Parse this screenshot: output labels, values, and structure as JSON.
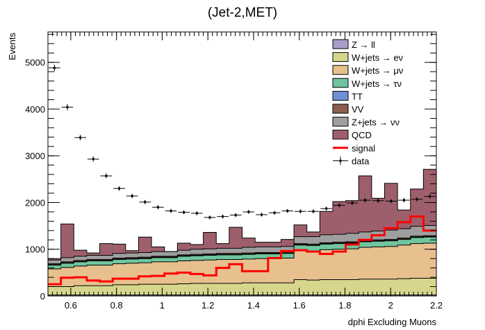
{
  "chart_data": {
    "type": "bar",
    "title": "(Jet-2,MET)",
    "xlabel": "dphi Excluding Muons",
    "ylabel": "Events",
    "xlim": [
      0.5,
      2.2
    ],
    "ylim": [
      0,
      5650
    ],
    "x_ticks": [
      0.6,
      0.8,
      1,
      1.2,
      1.4,
      1.6,
      1.8,
      2,
      2.2
    ],
    "x_tick_labels": [
      "0.6",
      "0.8",
      "1",
      "1.2",
      "1.4",
      "1.6",
      "1.8",
      "2",
      "2.2"
    ],
    "y_ticks": [
      0,
      1000,
      2000,
      3000,
      4000,
      5000
    ],
    "y_tick_labels": [
      "0",
      "1000",
      "2000",
      "3000",
      "4000",
      "5000"
    ],
    "bin_edges": [
      0.5,
      0.5567,
      0.6133,
      0.67,
      0.7267,
      0.7833,
      0.84,
      0.8967,
      0.9533,
      1.01,
      1.0667,
      1.1233,
      1.18,
      1.2367,
      1.2933,
      1.35,
      1.4067,
      1.4633,
      1.52,
      1.5767,
      1.6333,
      1.69,
      1.7467,
      1.8033,
      1.86,
      1.9167,
      1.9733,
      2.03,
      2.0867,
      2.1433,
      2.2
    ],
    "stack_order": [
      "Z → ll",
      "W+jets → eν",
      "W+jets → μν",
      "W+jets → τν",
      "TT",
      "VV",
      "Z+jets → νν",
      "QCD"
    ],
    "series": [
      {
        "name": "Z → ll",
        "color": "#a99cc7",
        "values": [
          20,
          20,
          20,
          20,
          20,
          20,
          20,
          20,
          20,
          20,
          20,
          20,
          20,
          20,
          20,
          20,
          20,
          20,
          20,
          20,
          20,
          20,
          20,
          20,
          20,
          20,
          20,
          20,
          20,
          20
        ]
      },
      {
        "name": "W+jets → eν",
        "color": "#d6d68c",
        "values": [
          180,
          180,
          200,
          200,
          200,
          220,
          220,
          230,
          230,
          230,
          240,
          250,
          250,
          250,
          250,
          260,
          260,
          260,
          260,
          330,
          320,
          330,
          330,
          330,
          340,
          340,
          340,
          350,
          360,
          360
        ]
      },
      {
        "name": "W+jets → μν",
        "color": "#e8c08e",
        "values": [
          380,
          410,
          420,
          440,
          440,
          450,
          460,
          460,
          480,
          480,
          490,
          490,
          500,
          510,
          510,
          510,
          520,
          520,
          530,
          620,
          620,
          640,
          650,
          660,
          680,
          690,
          700,
          720,
          740,
          750
        ]
      },
      {
        "name": "W+jets → τν",
        "color": "#6fc59e",
        "values": [
          80,
          90,
          90,
          90,
          90,
          90,
          90,
          90,
          90,
          90,
          100,
          100,
          100,
          100,
          100,
          100,
          100,
          100,
          100,
          120,
          120,
          120,
          120,
          120,
          120,
          120,
          120,
          120,
          130,
          130
        ]
      },
      {
        "name": "TT",
        "color": "#6f8fd6",
        "values": [
          10,
          10,
          10,
          10,
          10,
          10,
          10,
          10,
          10,
          10,
          10,
          10,
          10,
          10,
          10,
          10,
          10,
          10,
          10,
          10,
          10,
          10,
          10,
          10,
          10,
          10,
          10,
          10,
          10,
          10
        ]
      },
      {
        "name": "VV",
        "color": "#8d5e4c",
        "values": [
          20,
          20,
          20,
          20,
          20,
          20,
          20,
          20,
          20,
          20,
          20,
          20,
          20,
          20,
          20,
          20,
          20,
          20,
          20,
          20,
          20,
          20,
          20,
          20,
          20,
          20,
          20,
          20,
          20,
          20
        ]
      },
      {
        "name": "Z+jets → νν",
        "color": "#9e9e9e",
        "values": [
          80,
          90,
          90,
          90,
          90,
          100,
          100,
          100,
          100,
          100,
          100,
          110,
          110,
          110,
          110,
          120,
          120,
          120,
          120,
          150,
          160,
          170,
          170,
          180,
          180,
          190,
          200,
          200,
          210,
          220
        ]
      },
      {
        "name": "QCD",
        "color": "#9e5f6c",
        "values": [
          30,
          720,
          130,
          50,
          250,
          200,
          50,
          330,
          100,
          0,
          150,
          100,
          350,
          100,
          450,
          200,
          100,
          100,
          150,
          250,
          100,
          500,
          700,
          700,
          1200,
          700,
          1000,
          400,
          800,
          1200
        ]
      }
    ],
    "signal": {
      "name": "signal",
      "color": "#ff0000",
      "values": [
        250,
        390,
        400,
        330,
        310,
        370,
        370,
        420,
        430,
        480,
        500,
        470,
        440,
        600,
        680,
        530,
        530,
        810,
        960,
        980,
        950,
        900,
        950,
        1100,
        1200,
        1300,
        1450,
        1580,
        1700,
        1400
      ]
    },
    "data": {
      "name": "data",
      "values": [
        4880,
        4040,
        3390,
        2930,
        2570,
        2300,
        2140,
        2010,
        1900,
        1820,
        1790,
        1770,
        1680,
        1700,
        1730,
        1800,
        1740,
        1780,
        1820,
        1810,
        1810,
        1870,
        1940,
        1990,
        2050,
        2040,
        2030,
        2050,
        2070,
        2130
      ],
      "errors": [
        70,
        64,
        58,
        54,
        51,
        48,
        46,
        45,
        44,
        43,
        42,
        42,
        41,
        41,
        42,
        42,
        42,
        42,
        43,
        43,
        43,
        43,
        44,
        45,
        45,
        45,
        45,
        45,
        45,
        46
      ]
    },
    "legend": {
      "position": "top-right",
      "entries": [
        {
          "label": "Z → ll",
          "color": "#a99cc7",
          "kind": "box"
        },
        {
          "label": "W+jets → eν",
          "color": "#d6d68c",
          "kind": "box"
        },
        {
          "label": "W+jets → μν",
          "color": "#e8c08e",
          "kind": "box"
        },
        {
          "label": "W+jets → τν",
          "color": "#6fc59e",
          "kind": "box"
        },
        {
          "label": "TT",
          "color": "#6f8fd6",
          "kind": "box"
        },
        {
          "label": "VV",
          "color": "#8d5e4c",
          "kind": "box"
        },
        {
          "label": "Z+jets → νν",
          "color": "#9e9e9e",
          "kind": "box"
        },
        {
          "label": "QCD",
          "color": "#9e5f6c",
          "kind": "box"
        },
        {
          "label": "signal",
          "color": "#ff0000",
          "kind": "line"
        },
        {
          "label": "data",
          "color": "#000000",
          "kind": "marker"
        }
      ]
    }
  }
}
